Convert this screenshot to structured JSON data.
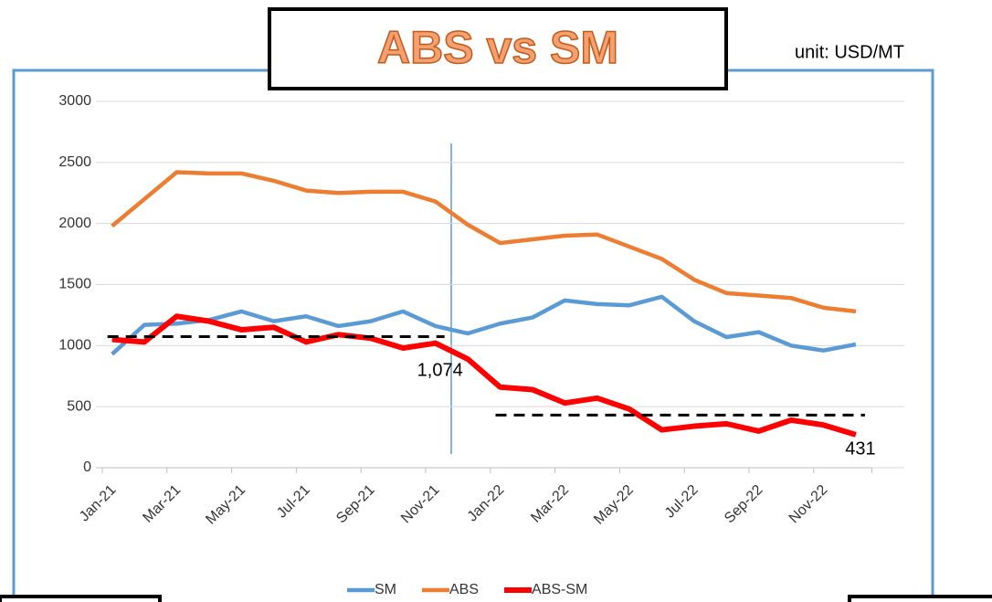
{
  "chart_data": {
    "type": "line",
    "title": "ABS vs SM",
    "subtitle": "unit: USD/MT",
    "categories": [
      "Jan-21",
      null,
      "Mar-21",
      null,
      "May-21",
      null,
      "Jul-21",
      null,
      "Sep-21",
      null,
      "Nov-21",
      null,
      "Jan-22",
      null,
      "Mar-22",
      null,
      "May-22",
      null,
      "Jul-22",
      null,
      "Sep-22",
      null,
      "Nov-22",
      null
    ],
    "series": [
      {
        "name": "SM",
        "color": "#5b9bd5",
        "values": [
          930,
          1170,
          1180,
          1210,
          1280,
          1200,
          1240,
          1160,
          1200,
          1280,
          1160,
          1100,
          1180,
          1230,
          1370,
          1340,
          1330,
          1400,
          1200,
          1070,
          1110,
          1000,
          960,
          1010
        ]
      },
      {
        "name": "ABS",
        "color": "#ed7d31",
        "values": [
          1980,
          2200,
          2420,
          2410,
          2410,
          2350,
          2270,
          2250,
          2260,
          2260,
          2180,
          1990,
          1840,
          1870,
          1900,
          1910,
          1810,
          1710,
          1540,
          1430,
          1410,
          1390,
          1310,
          1280
        ]
      },
      {
        "name": "ABS-SM",
        "color": "#ff0000",
        "values": [
          1050,
          1030,
          1240,
          1200,
          1130,
          1150,
          1030,
          1090,
          1060,
          980,
          1020,
          890,
          660,
          640,
          530,
          570,
          480,
          310,
          340,
          360,
          300,
          390,
          350,
          270
        ]
      }
    ],
    "annotations": [
      {
        "label": "1,074",
        "value": 1074,
        "from": 0,
        "to": 10
      },
      {
        "label": "431",
        "value": 431,
        "from": 12,
        "to": 23
      }
    ],
    "ylim": [
      0,
      3000
    ],
    "yticks": [
      0,
      500,
      1000,
      1500,
      2000,
      2500,
      3000
    ],
    "grid": true,
    "legend": "bottom"
  }
}
